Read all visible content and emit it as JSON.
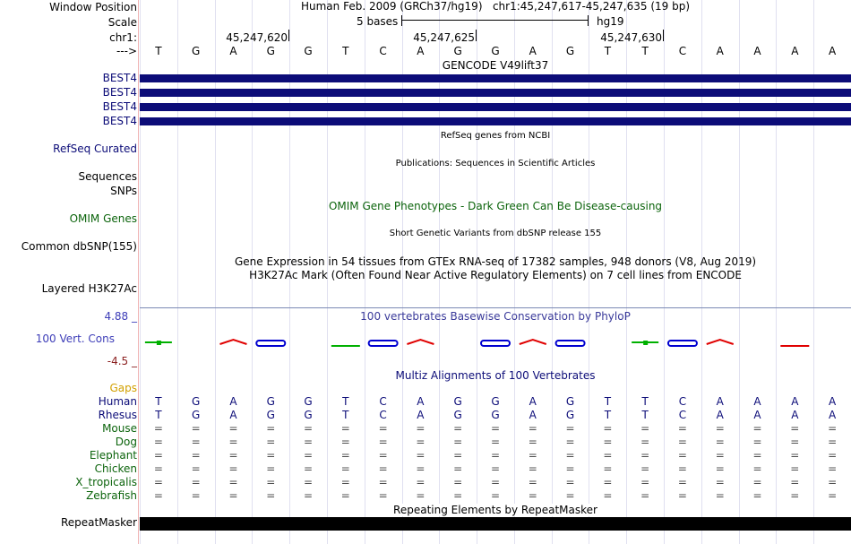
{
  "header": {
    "window_position_label": "Window Position",
    "window_position_value": "Human Feb. 2009 (GRCh37/hg19)   chr1:45,247,617-45,247,635 (19 bp)",
    "scale_label": "Scale",
    "scale_value": "5 bases",
    "scale_assembly": "hg19",
    "chrom_label": "chr1:",
    "positions": [
      "45,247,620",
      "45,247,625",
      "45,247,630"
    ],
    "strand_label": "--->"
  },
  "sequence": [
    "T",
    "G",
    "A",
    "G",
    "G",
    "T",
    "C",
    "A",
    "G",
    "G",
    "A",
    "G",
    "T",
    "T",
    "C",
    "A",
    "A",
    "A",
    "A"
  ],
  "tracks": {
    "gencode_title": "GENCODE V49lift37",
    "best4_labels": [
      "BEST4",
      "BEST4",
      "BEST4",
      "BEST4"
    ],
    "refseq_label": "RefSeq Curated",
    "refseq_title": "RefSeq genes from NCBI",
    "publications_title": "Publications: Sequences in Scientific Articles",
    "sequences_label": "Sequences",
    "snps_label": "SNPs",
    "omim_title": "OMIM Gene Phenotypes - Dark Green Can Be Disease-causing",
    "omim_label": "OMIM Genes",
    "dbsnp_label": "Common dbSNP(155)",
    "dbsnp_title": "Short Genetic Variants from dbSNP release 155",
    "gtex_title": "Gene Expression in 54 tissues from GTEx RNA-seq of 17382 samples, 948 donors (V8, Aug 2019)",
    "h3k27ac_title": "H3K27Ac Mark (Often Found Near Active Regulatory Elements) on 7 cell lines from ENCODE",
    "h3k27ac_label": "Layered H3K27Ac",
    "phylop_title": "100 vertebrates Basewise Conservation by PhyloP",
    "phylop_label": "100 Vert. Cons",
    "phylop_max": "4.88 _",
    "phylop_min": "-4.5 _",
    "multiz_title": "Multiz Alignments of 100 Vertebrates",
    "gaps_label": "Gaps",
    "repeatmasker_title": "Repeating Elements by RepeatMasker",
    "repeatmasker_label": "RepeatMasker"
  },
  "alignment": {
    "species": [
      "Human",
      "Rhesus",
      "Mouse",
      "Dog",
      "Elephant",
      "Chicken",
      "X_tropicalis",
      "Zebrafish"
    ],
    "rhesus_sequence": [
      "T",
      "G",
      "A",
      "G",
      "G",
      "T",
      "C",
      "A",
      "G",
      "G",
      "A",
      "G",
      "T",
      "T",
      "C",
      "A",
      "A",
      "A",
      "A"
    ],
    "match_symbol": "="
  },
  "colors": {
    "gene": "#0c0c78",
    "navy_label": "#0c0c78",
    "green_label": "#0c640c",
    "maroon": "#8b2020",
    "gaps": "#d2a000",
    "phylop_title": "#3a3a9a",
    "phylop_label": "#3d3db8"
  }
}
